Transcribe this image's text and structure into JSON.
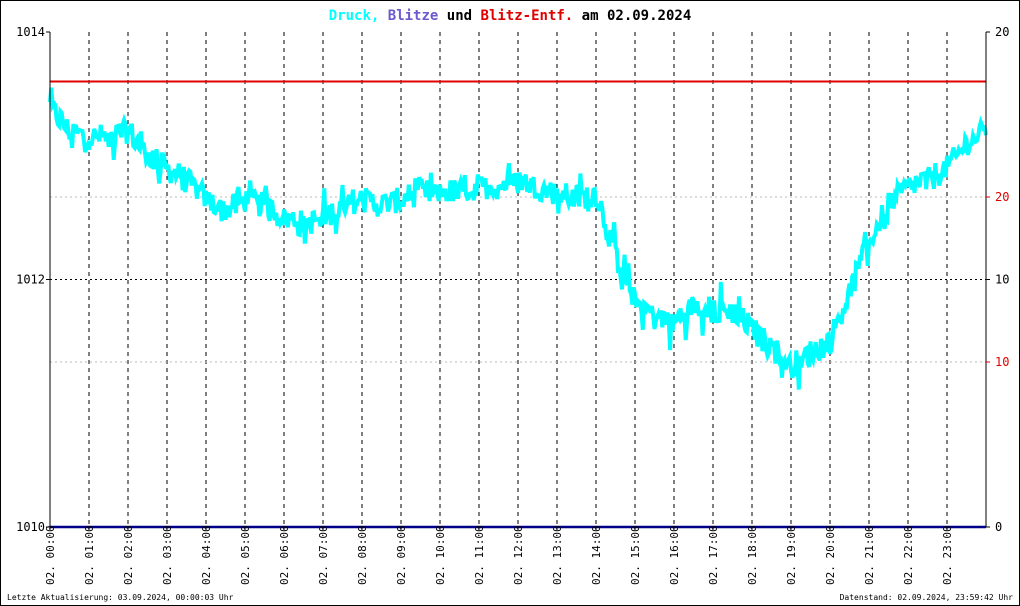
{
  "title": {
    "part1": "Druck,",
    "part2": "Blitze",
    "part3": "und",
    "part4": "Blitz-Entf.",
    "part5": "am 02.09.2024"
  },
  "colors": {
    "druck": "#00ffff",
    "blitze": "#6a5acd",
    "blitz_entf": "#e00000",
    "bottom_line": "#00008b",
    "text": "#000000"
  },
  "footer": {
    "left": "Letzte Aktualisierung: 03.09.2024, 00:00:03 Uhr",
    "right": "Datenstand: 02.09.2024, 23:59:42 Uhr"
  },
  "chart_data": {
    "type": "line",
    "title": "Druck, Blitze und Blitz-Entf. am 02.09.2024",
    "grid": true,
    "x_tick_labels": [
      "02. 00:00",
      "02. 01:00",
      "02. 02:00",
      "02. 03:00",
      "02. 04:00",
      "02. 05:00",
      "02. 06:00",
      "02. 07:00",
      "02. 08:00",
      "02. 09:00",
      "02. 10:00",
      "02. 11:00",
      "02. 12:00",
      "02. 13:00",
      "02. 14:00",
      "02. 15:00",
      "02. 16:00",
      "02. 17:00",
      "02. 18:00",
      "02. 19:00",
      "02. 20:00",
      "02. 21:00",
      "02. 22:00",
      "02. 23:00"
    ],
    "xlim_hours": [
      0,
      24
    ],
    "left_axis": {
      "ylim": [
        1010,
        1014
      ],
      "ticks": [
        "1010",
        "1012",
        "1014"
      ]
    },
    "right_axis_black": {
      "ticks": [
        "0",
        "10",
        "20"
      ]
    },
    "right_axis_red": {
      "ticks": [
        "10",
        "20"
      ]
    },
    "series": [
      {
        "name": "Druck",
        "axis": "left",
        "x_hours": [
          0,
          0.5,
          1,
          1.5,
          2,
          2.5,
          3,
          3.5,
          4,
          4.5,
          5,
          5.5,
          6,
          6.5,
          7,
          7.5,
          8,
          8.5,
          9,
          9.5,
          10,
          10.5,
          11,
          11.5,
          12,
          12.5,
          13,
          13.5,
          14,
          14.5,
          15,
          15.5,
          16,
          16.5,
          17,
          17.5,
          18,
          18.5,
          19,
          19.5,
          20,
          20.5,
          21,
          21.5,
          22,
          22.5,
          23,
          23.5,
          24
        ],
        "values": [
          1013.4,
          1013.2,
          1013.15,
          1013.15,
          1013.2,
          1013.0,
          1012.9,
          1012.8,
          1012.65,
          1012.55,
          1012.65,
          1012.6,
          1012.5,
          1012.45,
          1012.5,
          1012.6,
          1012.65,
          1012.6,
          1012.65,
          1012.7,
          1012.7,
          1012.7,
          1012.75,
          1012.75,
          1012.8,
          1012.75,
          1012.7,
          1012.65,
          1012.7,
          1012.2,
          1011.85,
          1011.7,
          1011.65,
          1011.8,
          1011.75,
          1011.75,
          1011.6,
          1011.45,
          1011.3,
          1011.4,
          1011.5,
          1011.9,
          1012.3,
          1012.6,
          1012.75,
          1012.8,
          1012.9,
          1013.1,
          1013.2
        ],
        "noise_amplitude": 0.1
      },
      {
        "name": "Blitz-Entf.",
        "axis": "right",
        "level": 1013.6
      },
      {
        "name": "Blitze",
        "axis": "right",
        "level": 1010.0
      }
    ]
  }
}
